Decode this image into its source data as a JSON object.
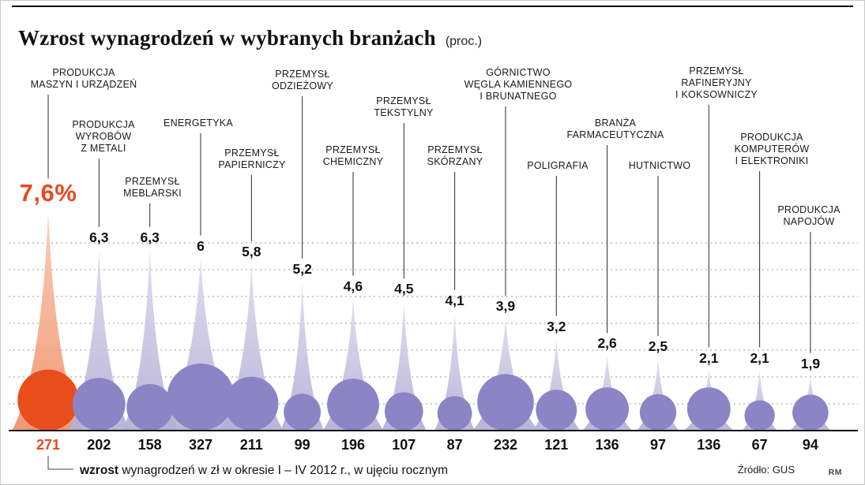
{
  "header": {
    "title": "Wzrost wynagrodzeń w wybranych branżach",
    "unit": "(proc.)"
  },
  "industries": [
    {
      "label_lines": [
        "PRODUKCJA",
        "MASZYN I URZĄDZEŃ"
      ],
      "pct": 7.6,
      "pct_label": "7,6%",
      "zl": "271",
      "highlight": true
    },
    {
      "label_lines": [
        "PRODUKCJA",
        "WYROBÓW",
        "Z METALI"
      ],
      "pct": 6.3,
      "pct_label": "6,3",
      "zl": "202",
      "highlight": false
    },
    {
      "label_lines": [
        "PRZEMYSŁ",
        "MEBLARSKI"
      ],
      "pct": 6.3,
      "pct_label": "6,3",
      "zl": "158",
      "highlight": false
    },
    {
      "label_lines": [
        "ENERGETYKA"
      ],
      "pct": 6.0,
      "pct_label": "6",
      "zl": "327",
      "highlight": false
    },
    {
      "label_lines": [
        "PRZEMYSŁ",
        "PAPIERNICZY"
      ],
      "pct": 5.8,
      "pct_label": "5,8",
      "zl": "211",
      "highlight": false
    },
    {
      "label_lines": [
        "PRZEMYSŁ",
        "ODZIEŻOWY"
      ],
      "pct": 5.2,
      "pct_label": "5,2",
      "zl": "99",
      "highlight": false
    },
    {
      "label_lines": [
        "PRZEMYSŁ",
        "CHEMICZNY"
      ],
      "pct": 4.6,
      "pct_label": "4,6",
      "zl": "196",
      "highlight": false
    },
    {
      "label_lines": [
        "PRZEMYSŁ",
        "TEKSTYLNY"
      ],
      "pct": 4.5,
      "pct_label": "4,5",
      "zl": "107",
      "highlight": false
    },
    {
      "label_lines": [
        "PRZEMYSŁ",
        "SKÓRZANY"
      ],
      "pct": 4.1,
      "pct_label": "4,1",
      "zl": "87",
      "highlight": false
    },
    {
      "label_lines": [
        "GÓRNICTWO",
        "WĘGLA KAMIENNEGO",
        "I BRUNATNEGO"
      ],
      "pct": 3.9,
      "pct_label": "3,9",
      "zl": "232",
      "highlight": false
    },
    {
      "label_lines": [
        "POLIGRAFIA"
      ],
      "pct": 3.2,
      "pct_label": "3,2",
      "zl": "121",
      "highlight": false
    },
    {
      "label_lines": [
        "BRANŻA",
        "FARMACEUTYCZNA"
      ],
      "pct": 2.6,
      "pct_label": "2,6",
      "zl": "136",
      "highlight": false
    },
    {
      "label_lines": [
        "HUTNICTWO"
      ],
      "pct": 2.5,
      "pct_label": "2,5",
      "zl": "97",
      "highlight": false
    },
    {
      "label_lines": [
        "PRZEMYSŁ",
        "RAFINERYJNY",
        "I KOKSOWNICZY"
      ],
      "pct": 2.1,
      "pct_label": "2,1",
      "zl": "136",
      "highlight": false
    },
    {
      "label_lines": [
        "PRODUKCJA",
        "KOMPUTERÓW",
        "I ELEKTRONIKI"
      ],
      "pct": 2.1,
      "pct_label": "2,1",
      "zl": "67",
      "highlight": false
    },
    {
      "label_lines": [
        "PRODUKCJA",
        "NAPOJÓW"
      ],
      "pct": 1.9,
      "pct_label": "1,9",
      "zl": "94",
      "highlight": false
    }
  ],
  "legend": {
    "highlight_word": "wzrost",
    "rest": " wynagrodzeń w zł w okresie I – IV 2012 r., w ujęciu rocznym"
  },
  "source": "Źródło: GUS",
  "credit": "RM",
  "colors": {
    "accent": "#e8491f",
    "circle_highlight": "#e84e1b",
    "circle": "#8b84c5",
    "cone_highlight_top": "#fac9b2",
    "cone_highlight_bottom": "#ef8f69",
    "cone_top": "#dddbee",
    "cone_bottom": "#b3aed6",
    "gridline": "#9a9a9a",
    "baseline": "#111111",
    "leader": "#2a2a2a"
  },
  "chart_data": {
    "type": "bar",
    "title": "Wzrost wynagrodzeń w wybranych branżach",
    "unit": "proc.",
    "categories": [
      "PRODUKCJA MASZYN I URZĄDZEŃ",
      "PRODUKCJA WYROBÓW Z METALI",
      "PRZEMYSŁ MEBLARSKI",
      "ENERGETYKA",
      "PRZEMYSŁ PAPIERNICZY",
      "PRZEMYSŁ ODZIEŻOWY",
      "PRZEMYSŁ CHEMICZNY",
      "PRZEMYSŁ TEKSTYLNY",
      "PRZEMYSŁ SKÓRZANY",
      "GÓRNICTWO WĘGLA KAMIENNEGO I BRUNATNEGO",
      "POLIGRAFIA",
      "BRANŻA FARMACEUTYCZNA",
      "HUTNICTWO",
      "PRZEMYSŁ RAFINERYJNY I KOKSOWNICZY",
      "PRODUKCJA KOMPUTERÓW I ELEKTRONIKI",
      "PRODUKCJA NAPOJÓW"
    ],
    "series": [
      {
        "name": "wzrost wynagrodzeń (proc.)",
        "values": [
          7.6,
          6.3,
          6.3,
          6,
          5.8,
          5.2,
          4.6,
          4.5,
          4.1,
          3.9,
          3.2,
          2.6,
          2.5,
          2.1,
          2.1,
          1.9
        ]
      },
      {
        "name": "wzrost wynagrodzeń w zł w okresie I – IV 2012 r., w ujęciu rocznym",
        "values": [
          271,
          202,
          158,
          327,
          211,
          99,
          196,
          107,
          87,
          232,
          121,
          136,
          97,
          136,
          67,
          94
        ]
      }
    ],
    "ylim": [
      0,
      8
    ],
    "grid": "dotted-horizontal",
    "legend_position": "bottom",
    "source": "Źródło: GUS"
  }
}
